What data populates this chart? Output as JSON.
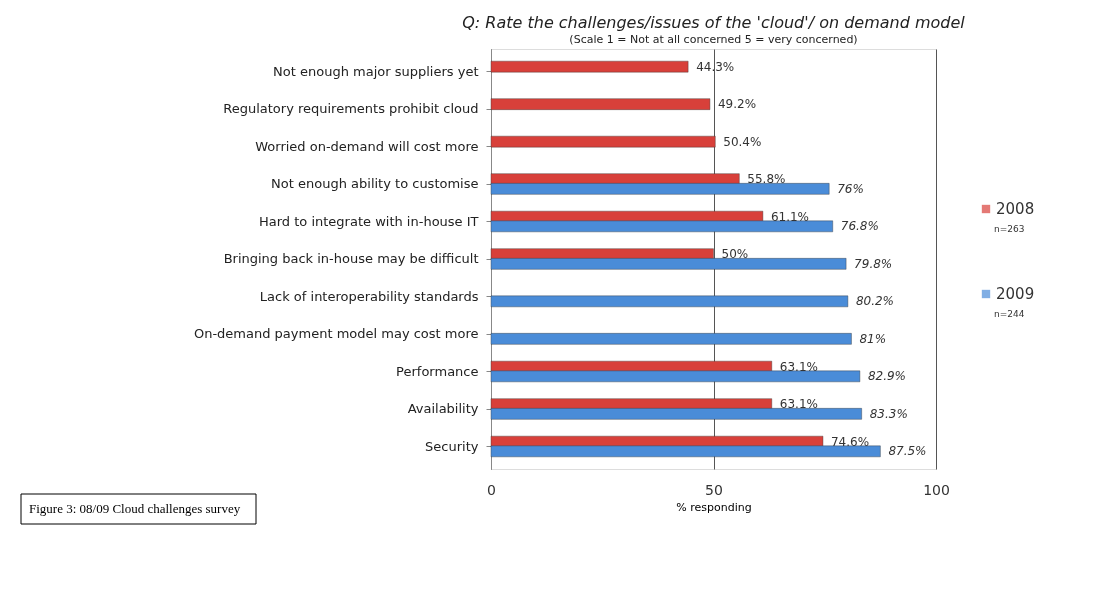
{
  "chart_data": {
    "type": "bar",
    "orientation": "horizontal",
    "title": "Q: Rate the challenges/issues of the 'cloud'/ on demand model",
    "subtitle": "(Scale 1 = Not at all concerned 5 = very concerned)",
    "xlabel": "% responding",
    "categories": [
      "Not enough major suppliers yet",
      "Regulatory requirements prohibit cloud",
      "Worried on-demand will cost more",
      "Not enough ability to customise",
      "Hard to integrate with in-house IT",
      "Bringing back in-house may be difficult",
      "Lack of interoperability standards",
      "On-demand payment model may cost more",
      "Performance",
      "Availability",
      "Security"
    ],
    "series": [
      {
        "name": "2008",
        "color": "#d8403a",
        "values": [
          44.3,
          49.2,
          50.4,
          55.8,
          61.1,
          50,
          null,
          null,
          63.1,
          63.1,
          74.6
        ],
        "value_labels": [
          "44.3%",
          "49.2%",
          "50.4%",
          "55.8%",
          "61.1%",
          "50%",
          null,
          null,
          "63.1%",
          "63.1%",
          "74.6%"
        ]
      },
      {
        "name": "2009",
        "color": "#4a8cd8",
        "values": [
          null,
          null,
          null,
          76,
          76.8,
          79.8,
          80.2,
          81,
          82.9,
          83.3,
          87.5
        ],
        "value_labels": [
          null,
          null,
          null,
          "76%",
          "76.8%",
          "79.8%",
          "80.2%",
          "81%",
          "82.9%",
          "83.3%",
          "87.5%"
        ]
      }
    ],
    "xlim": [
      0,
      100
    ],
    "xticks": [
      0,
      50,
      100
    ],
    "grid": "x",
    "legend": "right",
    "annotations": [
      "n=263",
      "n=244",
      "Figure 3: 08/09 Cloud challenges survey"
    ]
  }
}
